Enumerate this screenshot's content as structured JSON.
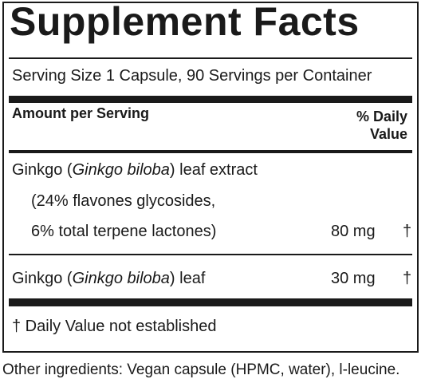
{
  "title": "Supplement Facts",
  "serving_line": "Serving Size 1 Capsule, 90 Servings per Container",
  "header": {
    "amount_per_serving": "Amount per Serving",
    "daily_value_line1": "% Daily",
    "daily_value_line2": "Value"
  },
  "ingredients": [
    {
      "name_prefix": "Ginkgo (",
      "name_italic": "Ginkgo biloba",
      "name_suffix": ") leaf extract",
      "detail_line1": "(24% flavones glycosides,",
      "detail_line2": "6% total terpene lactones)",
      "amount": "80 mg",
      "daily_value": "†"
    },
    {
      "name_prefix": "Ginkgo (",
      "name_italic": "Ginkgo biloba",
      "name_suffix": ") leaf",
      "amount": "30 mg",
      "daily_value": "†"
    }
  ],
  "footnote": "† Daily Value not established",
  "other_ingredients": "Other ingredients: Vegan capsule (HPMC, water), l-leucine."
}
